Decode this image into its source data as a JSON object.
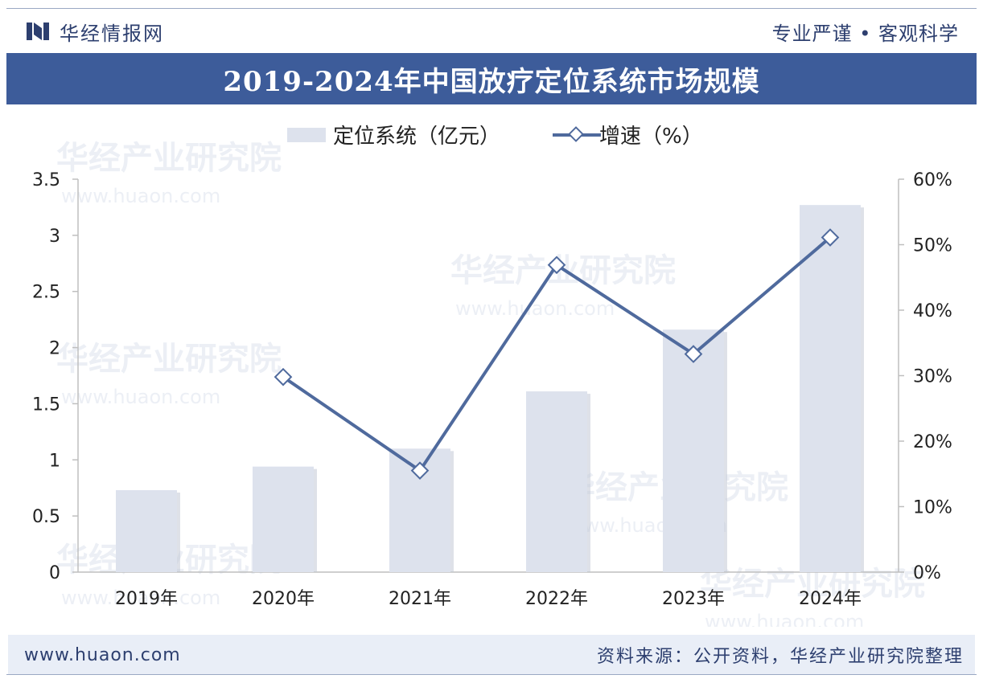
{
  "header": {
    "brand_name": "华经情报网",
    "slogan": "专业严谨 • 客观科学"
  },
  "title": "2019-2024年中国放疗定位系统市场规模",
  "footer": {
    "url": "www.huaon.com",
    "source": "资料来源：公开资料，华经产业研究院整理"
  },
  "watermark": {
    "name": "华经产业研究院",
    "url": "www.huaon.com"
  },
  "colors": {
    "banner": "#3d5c9a",
    "bar": "#dde2ed",
    "line": "#4f6a9d",
    "text_dark": "#2d3f6f"
  },
  "chart_data": {
    "type": "bar",
    "categories": [
      "2019年",
      "2020年",
      "2021年",
      "2022年",
      "2023年",
      "2024年"
    ],
    "series": [
      {
        "name": "定位系统（亿元）",
        "type": "bar",
        "axis": "left",
        "values": [
          0.73,
          0.94,
          1.1,
          1.61,
          2.16,
          3.27
        ]
      },
      {
        "name": "增速（%）",
        "type": "line",
        "axis": "right",
        "values": [
          null,
          29.8,
          15.5,
          46.9,
          33.3,
          51.1
        ]
      }
    ],
    "y_left": {
      "min": 0,
      "max": 3.5,
      "ticks": [
        "0",
        "0.5",
        "1",
        "1.5",
        "2",
        "2.5",
        "3",
        "3.5"
      ]
    },
    "y_right": {
      "min": 0,
      "max": 60,
      "ticks": [
        "0%",
        "10%",
        "20%",
        "30%",
        "40%",
        "50%",
        "60%"
      ]
    },
    "legend_position": "top-center",
    "grid": false
  }
}
